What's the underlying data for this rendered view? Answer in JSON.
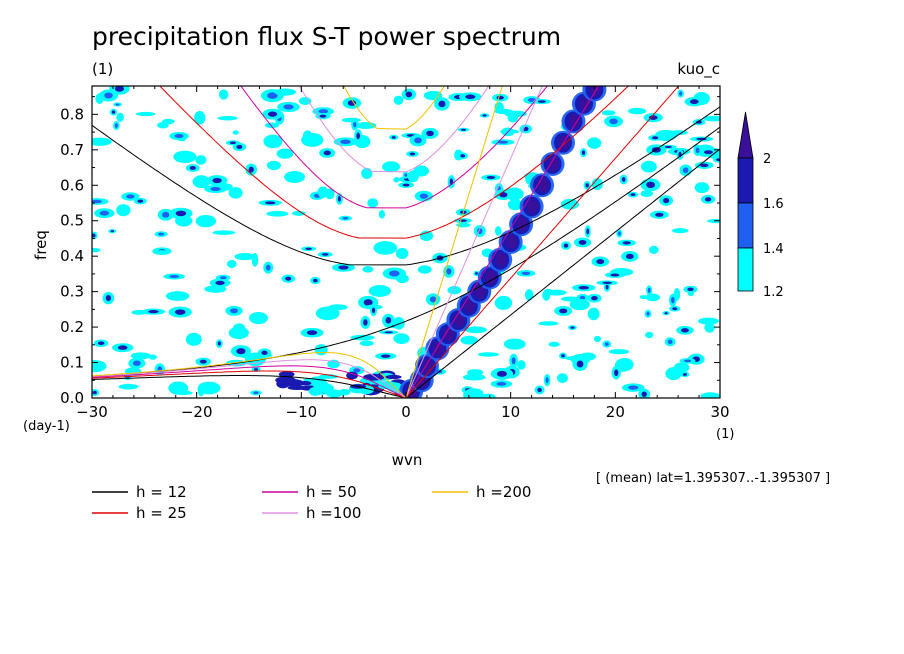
{
  "chart_data": {
    "type": "heatmap",
    "title": "precipitation flux S-T power spectrum",
    "subtitle_left": "(1)",
    "subtitle_right": "kuo_c",
    "xlabel": "wvn",
    "ylabel": "freq",
    "x_unit": "(1)",
    "y_unit": "(day-1)",
    "xlim": [
      -30,
      30
    ],
    "ylim": [
      0,
      0.88
    ],
    "xticks": [
      -30,
      -20,
      -10,
      0,
      10,
      20,
      30
    ],
    "xtick_labels": [
      "−30",
      "−20",
      "−10",
      "0",
      "10",
      "20",
      "30"
    ],
    "yticks": [
      0,
      0.1,
      0.2,
      0.3,
      0.4,
      0.5,
      0.6,
      0.7,
      0.8
    ],
    "ytick_labels": [
      "0.0",
      "0.1",
      "0.2",
      "0.3",
      "0.4",
      "0.5",
      "0.6",
      "0.7",
      "0.8"
    ],
    "colorbar": {
      "levels": [
        1.2,
        1.4,
        1.6,
        2
      ],
      "labels": [
        "1.2",
        "1.4",
        "1.6",
        "2"
      ],
      "colors": [
        "#00ffff",
        "#1f5ff2",
        "#1a1ab0",
        "#3a0f9a"
      ]
    },
    "annotation": "[ (mean) lat=1.395307..-1.395307 ]",
    "dispersion_curves": [
      {
        "name": "h = 12",
        "h": 12,
        "color": "#000000"
      },
      {
        "name": "h = 25",
        "h": 25,
        "color": "#e00000"
      },
      {
        "name": "h = 50",
        "h": 50,
        "color": "#d000a0"
      },
      {
        "name": "h =100",
        "h": 100,
        "color": "#e090e0"
      },
      {
        "name": "h =200",
        "h": 200,
        "color": "#f0c000"
      }
    ],
    "kelvin_ridge": [
      {
        "x": 0.5,
        "y": 0.02
      },
      {
        "x": 1.5,
        "y": 0.05
      },
      {
        "x": 2,
        "y": 0.09
      },
      {
        "x": 3,
        "y": 0.14
      },
      {
        "x": 4,
        "y": 0.18
      },
      {
        "x": 5,
        "y": 0.22
      },
      {
        "x": 6,
        "y": 0.26
      },
      {
        "x": 7,
        "y": 0.3
      },
      {
        "x": 8,
        "y": 0.34
      },
      {
        "x": 9,
        "y": 0.39
      },
      {
        "x": 10,
        "y": 0.44
      },
      {
        "x": 11,
        "y": 0.49
      },
      {
        "x": 12,
        "y": 0.54
      },
      {
        "x": 13,
        "y": 0.6
      },
      {
        "x": 14,
        "y": 0.66
      },
      {
        "x": 15,
        "y": 0.72
      },
      {
        "x": 16,
        "y": 0.78
      },
      {
        "x": 17,
        "y": 0.83
      },
      {
        "x": 18,
        "y": 0.87
      }
    ]
  }
}
